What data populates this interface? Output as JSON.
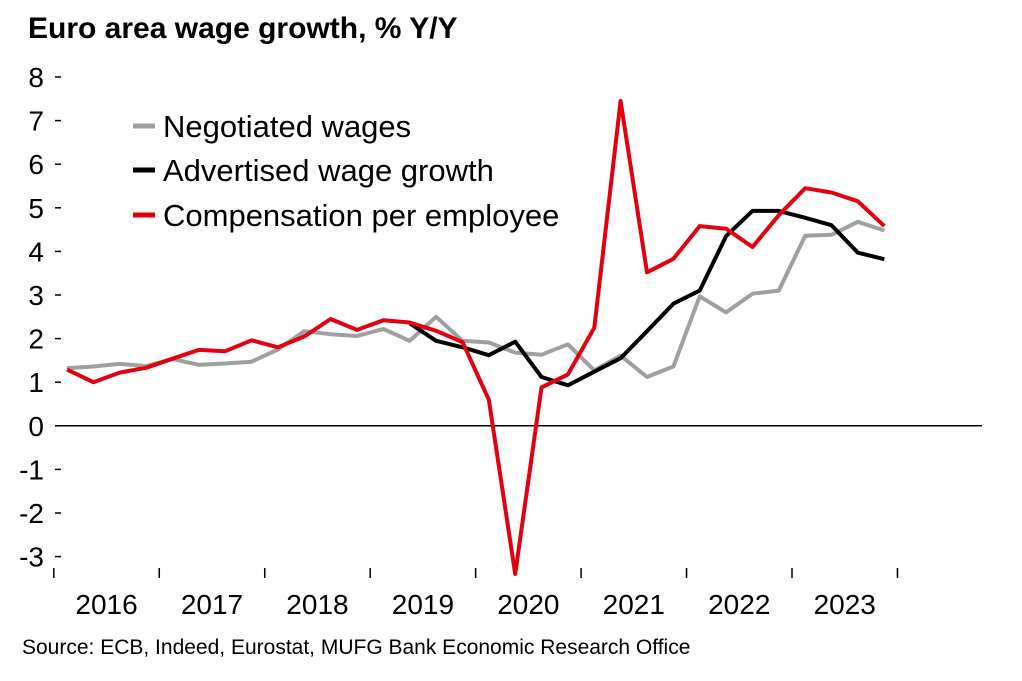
{
  "chart_data": {
    "type": "line",
    "title": "Euro area wage growth, % Y/Y",
    "source": "Source: ECB, Indeed, Eurostat, MUFG Bank Economic Research Office",
    "xlabel": "",
    "ylabel": "",
    "ylim": [
      -3.4,
      8
    ],
    "yticks": [
      8,
      7,
      6,
      5,
      4,
      3,
      2,
      1,
      0,
      -1,
      -2,
      -3
    ],
    "xlim": [
      2015.625,
      2023.875
    ],
    "year_labels": [
      "2016",
      "2017",
      "2018",
      "2019",
      "2020",
      "2021",
      "2022",
      "2023"
    ],
    "grid": false,
    "legend_position": "top-left",
    "series": [
      {
        "name": "Negotiated wages",
        "color": "#a0a0a0",
        "points": [
          [
            2015.625,
            1.32
          ],
          [
            2015.875,
            1.36
          ],
          [
            2016.125,
            1.42
          ],
          [
            2016.375,
            1.37
          ],
          [
            2016.625,
            1.53
          ],
          [
            2016.875,
            1.4
          ],
          [
            2017.125,
            1.43
          ],
          [
            2017.375,
            1.47
          ],
          [
            2017.625,
            1.75
          ],
          [
            2017.875,
            2.17
          ],
          [
            2018.125,
            2.1
          ],
          [
            2018.375,
            2.06
          ],
          [
            2018.625,
            2.22
          ],
          [
            2018.875,
            1.95
          ],
          [
            2019.125,
            2.5
          ],
          [
            2019.375,
            1.95
          ],
          [
            2019.625,
            1.91
          ],
          [
            2019.875,
            1.68
          ],
          [
            2020.125,
            1.63
          ],
          [
            2020.375,
            1.87
          ],
          [
            2020.625,
            1.27
          ],
          [
            2020.875,
            1.61
          ],
          [
            2021.125,
            1.12
          ],
          [
            2021.375,
            1.36
          ],
          [
            2021.625,
            2.97
          ],
          [
            2021.875,
            2.6
          ],
          [
            2022.125,
            3.03
          ],
          [
            2022.375,
            3.1
          ],
          [
            2022.625,
            4.36
          ],
          [
            2022.875,
            4.38
          ],
          [
            2023.125,
            4.68
          ],
          [
            2023.375,
            4.48
          ]
        ]
      },
      {
        "name": "Advertised wage growth",
        "color": "#000000",
        "points": [
          [
            2018.875,
            2.35
          ],
          [
            2019.125,
            1.95
          ],
          [
            2019.375,
            1.8
          ],
          [
            2019.625,
            1.62
          ],
          [
            2019.875,
            1.93
          ],
          [
            2020.125,
            1.12
          ],
          [
            2020.375,
            0.93
          ],
          [
            2020.625,
            1.24
          ],
          [
            2020.875,
            1.55
          ],
          [
            2021.125,
            2.17
          ],
          [
            2021.375,
            2.8
          ],
          [
            2021.625,
            3.1
          ],
          [
            2021.875,
            4.35
          ],
          [
            2022.125,
            4.93
          ],
          [
            2022.375,
            4.93
          ],
          [
            2022.625,
            4.77
          ],
          [
            2022.875,
            4.6
          ],
          [
            2023.125,
            3.97
          ],
          [
            2023.375,
            3.82
          ]
        ]
      },
      {
        "name": "Compensation per employee",
        "color": "#e3000f",
        "points": [
          [
            2015.625,
            1.29
          ],
          [
            2015.875,
            1.0
          ],
          [
            2016.125,
            1.22
          ],
          [
            2016.375,
            1.33
          ],
          [
            2016.625,
            1.54
          ],
          [
            2016.875,
            1.74
          ],
          [
            2017.125,
            1.71
          ],
          [
            2017.375,
            1.96
          ],
          [
            2017.625,
            1.8
          ],
          [
            2017.875,
            2.05
          ],
          [
            2018.125,
            2.45
          ],
          [
            2018.375,
            2.2
          ],
          [
            2018.625,
            2.42
          ],
          [
            2018.875,
            2.37
          ],
          [
            2019.125,
            2.18
          ],
          [
            2019.375,
            1.92
          ],
          [
            2019.625,
            0.6
          ],
          [
            2019.875,
            -3.4
          ],
          [
            2020.125,
            0.88
          ],
          [
            2020.375,
            1.18
          ],
          [
            2020.625,
            2.25
          ],
          [
            2020.875,
            7.45
          ],
          [
            2021.125,
            3.52
          ],
          [
            2021.375,
            3.83
          ],
          [
            2021.625,
            4.58
          ],
          [
            2021.875,
            4.52
          ],
          [
            2022.125,
            4.1
          ],
          [
            2022.375,
            4.83
          ],
          [
            2022.625,
            5.45
          ],
          [
            2022.875,
            5.35
          ],
          [
            2023.125,
            5.15
          ],
          [
            2023.375,
            4.58
          ]
        ]
      }
    ]
  }
}
